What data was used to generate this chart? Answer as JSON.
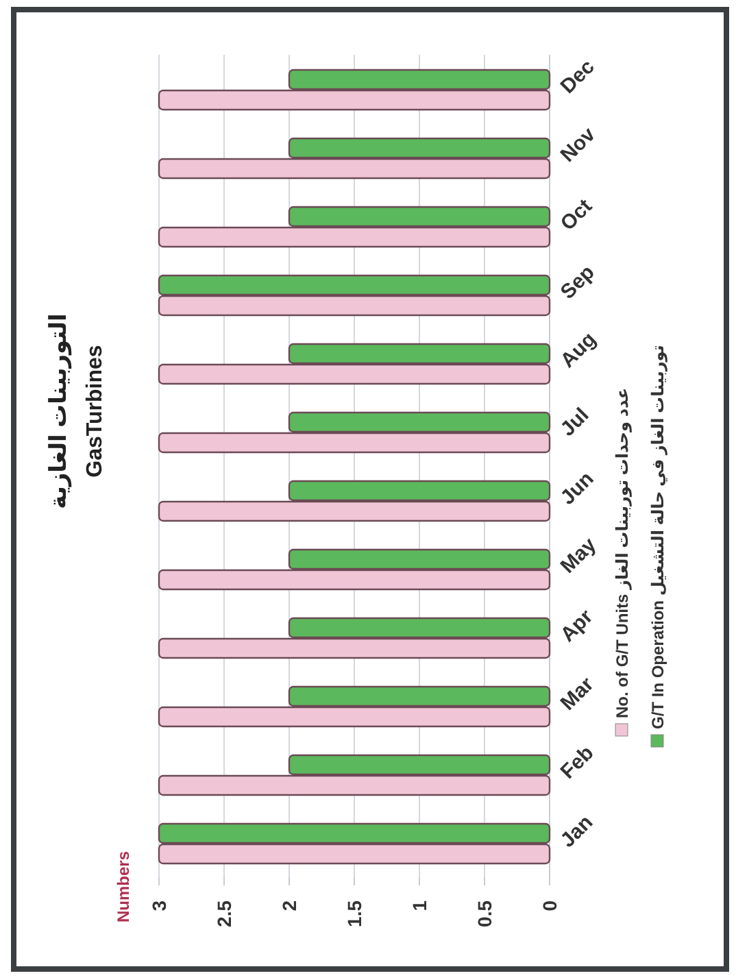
{
  "chart_data": {
    "type": "bar",
    "orientation": "horizontal",
    "title": "التوربينات الغازية",
    "subtitle": "GasTurbines",
    "annotations": [
      "Numbers"
    ],
    "categories": [
      "Dec",
      "Nov",
      "Oct",
      "Sep",
      "Aug",
      "Jul",
      "Jun",
      "May",
      "Apr",
      "Mar",
      "Feb",
      "Jan"
    ],
    "series": [
      {
        "name": "No. of G/T Units  عدد وحدات توربينات الغاز",
        "color": "#f0c6d6",
        "values": [
          3,
          3,
          3,
          3,
          3,
          3,
          3,
          3,
          3,
          3,
          3,
          3
        ]
      },
      {
        "name": "G/T In Operation  توربينات الغاز في حالة التشغيل",
        "color": "#5cb85c",
        "values": [
          2,
          2,
          2,
          3,
          2,
          2,
          2,
          2,
          2,
          2,
          2,
          3
        ]
      }
    ],
    "xlim": [
      3,
      0
    ],
    "xticks": [
      3,
      2.5,
      2,
      1.5,
      1,
      0.5,
      0
    ],
    "grid": "x",
    "legend": "right"
  }
}
